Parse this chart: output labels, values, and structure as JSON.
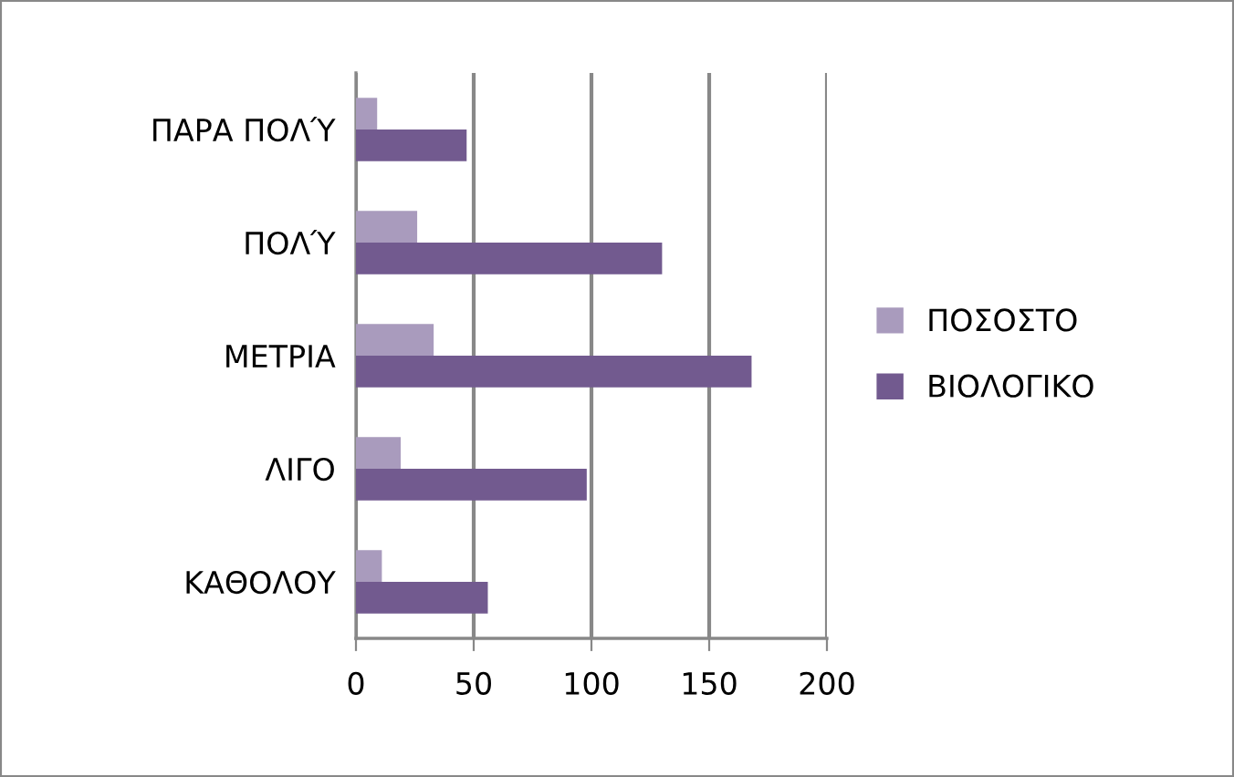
{
  "chart_data": {
    "type": "bar",
    "orientation": "horizontal",
    "categories": [
      "ΠΑΡΑ ΠΟΛΎ",
      "ΠΟΛΎ",
      "ΜΕΤΡΙΑ",
      "ΛΙΓΟ",
      "ΚΑΘΟΛΟΥ"
    ],
    "series": [
      {
        "name": "ΠΟΣΟΣΤΟ",
        "color": "#a99bbd",
        "values": [
          9,
          26,
          33,
          19,
          11
        ]
      },
      {
        "name": "ΒΙΟΛΟΓΙΚΟ",
        "color": "#725a8f",
        "values": [
          47,
          130,
          168,
          98,
          56
        ]
      }
    ],
    "xlim": [
      0,
      200
    ],
    "xticks": [
      0,
      50,
      100,
      150,
      200
    ],
    "grid": "x",
    "legend": "right"
  }
}
